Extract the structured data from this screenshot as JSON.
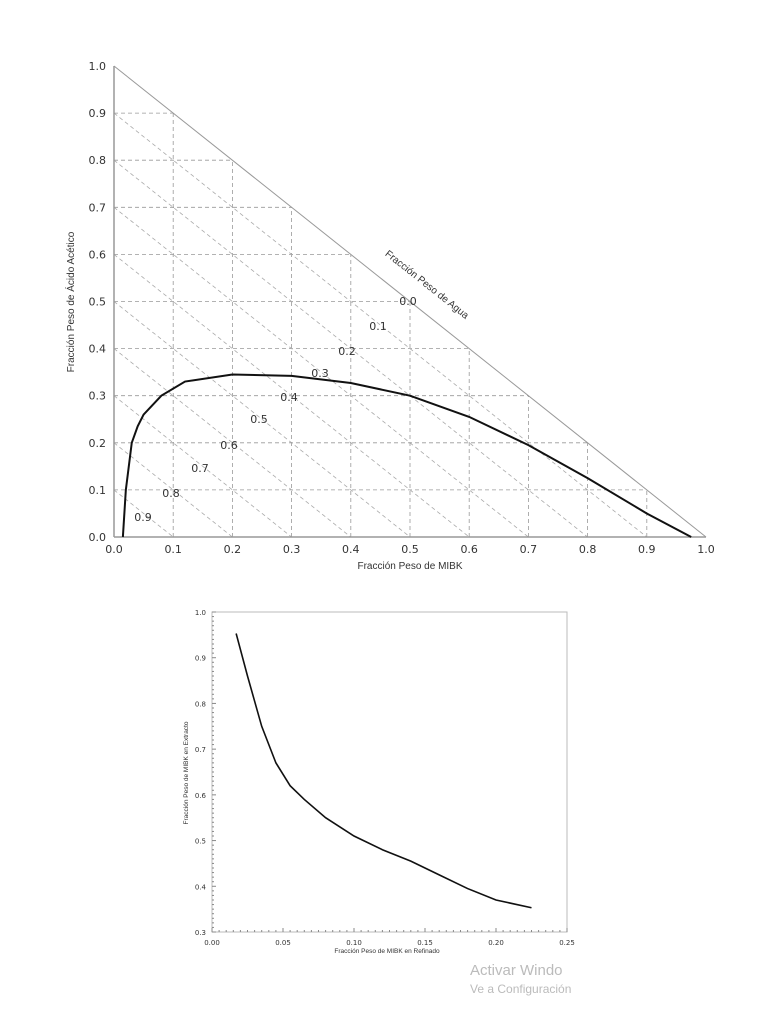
{
  "chart_data": [
    {
      "type": "line",
      "subtype": "ternary-right-triangle",
      "xlabel": "Fracción Peso de MIBK",
      "ylabel": "Fracción Peso de Ácido Acético",
      "diagonal_label": "Fracción Peso de Agua",
      "xlim": [
        0,
        1
      ],
      "ylim": [
        0,
        1
      ],
      "xticks": [
        "0.0",
        "0.1",
        "0.2",
        "0.3",
        "0.4",
        "0.5",
        "0.6",
        "0.7",
        "0.8",
        "0.9",
        "1.0"
      ],
      "yticks": [
        "0.0",
        "0.1",
        "0.2",
        "0.3",
        "0.4",
        "0.5",
        "0.6",
        "0.7",
        "0.8",
        "0.9",
        "1.0"
      ],
      "water_isolines": [
        "0.0",
        "0.1",
        "0.2",
        "0.3",
        "0.4",
        "0.5",
        "0.6",
        "0.7",
        "0.8",
        "0.9"
      ],
      "grid": true,
      "series": [
        {
          "x": [
            0.015,
            0.02,
            0.03,
            0.04,
            0.05,
            0.08,
            0.12,
            0.2,
            0.3,
            0.4,
            0.5,
            0.6,
            0.7,
            0.8,
            0.9,
            0.975
          ],
          "y": [
            0.0,
            0.1,
            0.2,
            0.235,
            0.26,
            0.3,
            0.33,
            0.345,
            0.342,
            0.327,
            0.3,
            0.255,
            0.195,
            0.125,
            0.05,
            0.0
          ]
        }
      ]
    },
    {
      "type": "line",
      "xlabel": "Fracción Peso de MIBK en Refinado",
      "ylabel": "Fracción Peso de MIBK en Extracto",
      "xlim": [
        0,
        0.25
      ],
      "ylim": [
        0.3,
        1.0
      ],
      "xticks": [
        "0.00",
        "0.05",
        "0.10",
        "0.15",
        "0.20",
        "0.25"
      ],
      "yticks": [
        "0.3",
        "0.4",
        "0.5",
        "0.6",
        "0.7",
        "0.8",
        "0.9",
        "1.0"
      ],
      "grid": false,
      "series": [
        {
          "x": [
            0.017,
            0.025,
            0.035,
            0.045,
            0.055,
            0.065,
            0.08,
            0.1,
            0.12,
            0.14,
            0.16,
            0.18,
            0.2,
            0.225
          ],
          "y": [
            0.953,
            0.86,
            0.75,
            0.67,
            0.62,
            0.59,
            0.55,
            0.51,
            0.48,
            0.455,
            0.425,
            0.395,
            0.37,
            0.353
          ]
        }
      ]
    }
  ],
  "watermark": {
    "line1": "Activar Windo",
    "line2": "Ve a Configuración"
  }
}
